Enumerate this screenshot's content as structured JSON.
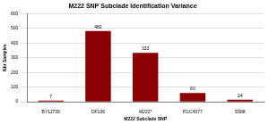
{
  "chart_data": {
    "type": "bar",
    "title": "M222 SNP Subclade Identification Variance",
    "x_label": "M222 Subclade SNP",
    "y_label": "Nbr Samples",
    "categories": [
      "BY11739",
      "DF106",
      "M222*",
      "FGC4077",
      "S588"
    ],
    "values": [
      7,
      482,
      333,
      60,
      14
    ],
    "color": "#8b0000",
    "ylim": [
      0,
      600
    ],
    "yticks": [
      0,
      100,
      200,
      300,
      400,
      500,
      600
    ],
    "grid": true,
    "data_labels": true
  }
}
